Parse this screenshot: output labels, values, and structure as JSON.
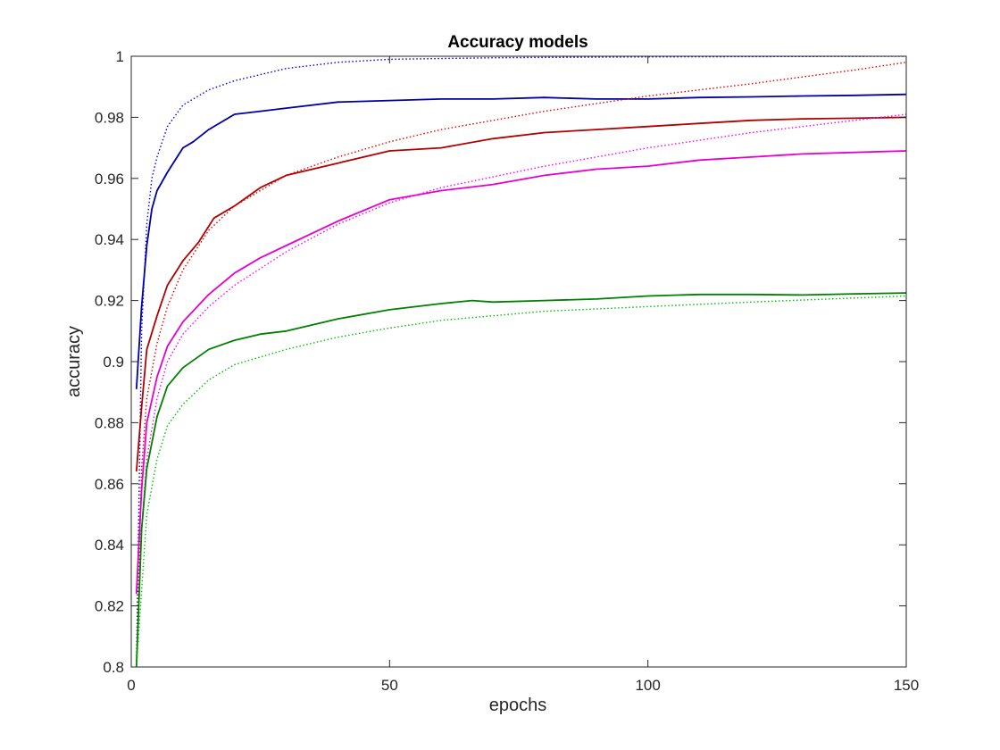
{
  "chart_data": {
    "type": "line",
    "title": "Accuracy models",
    "xlabel": "epochs",
    "ylabel": "accuracy",
    "xlim": [
      0,
      150
    ],
    "ylim": [
      0.8,
      1
    ],
    "xticks": [
      0,
      50,
      100,
      150
    ],
    "xtick_labels": [
      "0",
      "50",
      "100",
      "150"
    ],
    "yticks": [
      0.8,
      0.82,
      0.84,
      0.86,
      0.88,
      0.9,
      0.92,
      0.94,
      0.96,
      0.98,
      1
    ],
    "ytick_labels": [
      "0.8",
      "0.82",
      "0.84",
      "0.86",
      "0.88",
      "0.9",
      "0.92",
      "0.94",
      "0.96",
      "0.98",
      "1"
    ],
    "grid": false,
    "box": true,
    "series": [
      {
        "color": "#0000a0",
        "style": "solid",
        "points": [
          [
            1,
            0.891
          ],
          [
            2,
            0.918
          ],
          [
            3,
            0.938
          ],
          [
            4,
            0.95
          ],
          [
            5,
            0.956
          ],
          [
            7,
            0.962
          ],
          [
            10,
            0.97
          ],
          [
            12,
            0.972
          ],
          [
            15,
            0.976
          ],
          [
            20,
            0.981
          ],
          [
            25,
            0.982
          ],
          [
            30,
            0.983
          ],
          [
            40,
            0.985
          ],
          [
            50,
            0.9855
          ],
          [
            60,
            0.986
          ],
          [
            70,
            0.986
          ],
          [
            80,
            0.9865
          ],
          [
            90,
            0.986
          ],
          [
            100,
            0.986
          ],
          [
            110,
            0.9865
          ],
          [
            120,
            0.9867
          ],
          [
            130,
            0.987
          ],
          [
            140,
            0.9872
          ],
          [
            150,
            0.9875
          ]
        ]
      },
      {
        "color": "#0000e6",
        "style": "dotted",
        "points": [
          [
            1,
            0.8
          ],
          [
            2,
            0.91
          ],
          [
            3,
            0.945
          ],
          [
            4,
            0.96
          ],
          [
            5,
            0.967
          ],
          [
            7,
            0.977
          ],
          [
            10,
            0.984
          ],
          [
            15,
            0.989
          ],
          [
            20,
            0.992
          ],
          [
            30,
            0.996
          ],
          [
            40,
            0.998
          ],
          [
            50,
            0.999
          ],
          [
            70,
            0.9995
          ],
          [
            100,
            0.9998
          ],
          [
            150,
            1.0
          ]
        ]
      },
      {
        "color": "#b00000",
        "style": "solid",
        "points": [
          [
            1,
            0.864
          ],
          [
            2,
            0.885
          ],
          [
            3,
            0.904
          ],
          [
            5,
            0.915
          ],
          [
            7,
            0.925
          ],
          [
            10,
            0.933
          ],
          [
            13,
            0.939
          ],
          [
            16,
            0.947
          ],
          [
            20,
            0.951
          ],
          [
            25,
            0.957
          ],
          [
            30,
            0.961
          ],
          [
            40,
            0.965
          ],
          [
            50,
            0.969
          ],
          [
            60,
            0.97
          ],
          [
            70,
            0.973
          ],
          [
            80,
            0.975
          ],
          [
            90,
            0.976
          ],
          [
            100,
            0.977
          ],
          [
            110,
            0.978
          ],
          [
            120,
            0.979
          ],
          [
            130,
            0.9795
          ],
          [
            140,
            0.9797
          ],
          [
            150,
            0.98
          ]
        ]
      },
      {
        "color": "#e60000",
        "style": "dotted",
        "points": [
          [
            1,
            0.8
          ],
          [
            2,
            0.865
          ],
          [
            3,
            0.888
          ],
          [
            5,
            0.906
          ],
          [
            7,
            0.918
          ],
          [
            10,
            0.93
          ],
          [
            15,
            0.943
          ],
          [
            20,
            0.951
          ],
          [
            30,
            0.961
          ],
          [
            40,
            0.967
          ],
          [
            50,
            0.972
          ],
          [
            60,
            0.976
          ],
          [
            80,
            0.982
          ],
          [
            100,
            0.987
          ],
          [
            120,
            0.991
          ],
          [
            140,
            0.9955
          ],
          [
            150,
            0.998
          ]
        ]
      },
      {
        "color": "#e600d0",
        "style": "solid",
        "points": [
          [
            1,
            0.824
          ],
          [
            2,
            0.858
          ],
          [
            3,
            0.88
          ],
          [
            5,
            0.895
          ],
          [
            7,
            0.905
          ],
          [
            10,
            0.913
          ],
          [
            15,
            0.922
          ],
          [
            20,
            0.929
          ],
          [
            25,
            0.934
          ],
          [
            30,
            0.938
          ],
          [
            40,
            0.946
          ],
          [
            50,
            0.953
          ],
          [
            60,
            0.956
          ],
          [
            70,
            0.958
          ],
          [
            80,
            0.961
          ],
          [
            90,
            0.963
          ],
          [
            100,
            0.964
          ],
          [
            110,
            0.966
          ],
          [
            120,
            0.967
          ],
          [
            130,
            0.968
          ],
          [
            140,
            0.9685
          ],
          [
            150,
            0.969
          ]
        ]
      },
      {
        "color": "#ff00ff",
        "style": "dotted",
        "points": [
          [
            1,
            0.8
          ],
          [
            2,
            0.845
          ],
          [
            3,
            0.868
          ],
          [
            5,
            0.888
          ],
          [
            7,
            0.9
          ],
          [
            10,
            0.909
          ],
          [
            15,
            0.918
          ],
          [
            20,
            0.925
          ],
          [
            30,
            0.936
          ],
          [
            40,
            0.945
          ],
          [
            50,
            0.952
          ],
          [
            60,
            0.957
          ],
          [
            80,
            0.964
          ],
          [
            100,
            0.97
          ],
          [
            120,
            0.975
          ],
          [
            140,
            0.979
          ],
          [
            150,
            0.981
          ]
        ]
      },
      {
        "color": "#008000",
        "style": "solid",
        "points": [
          [
            1,
            0.8
          ],
          [
            2,
            0.845
          ],
          [
            3,
            0.865
          ],
          [
            5,
            0.882
          ],
          [
            7,
            0.892
          ],
          [
            10,
            0.898
          ],
          [
            15,
            0.904
          ],
          [
            20,
            0.907
          ],
          [
            25,
            0.909
          ],
          [
            30,
            0.91
          ],
          [
            40,
            0.914
          ],
          [
            50,
            0.917
          ],
          [
            60,
            0.919
          ],
          [
            66,
            0.92
          ],
          [
            70,
            0.9195
          ],
          [
            80,
            0.92
          ],
          [
            90,
            0.9205
          ],
          [
            100,
            0.9215
          ],
          [
            110,
            0.922
          ],
          [
            120,
            0.922
          ],
          [
            130,
            0.9218
          ],
          [
            140,
            0.9222
          ],
          [
            150,
            0.9225
          ]
        ]
      },
      {
        "color": "#00c000",
        "style": "dotted",
        "points": [
          [
            1,
            0.8
          ],
          [
            2,
            0.825
          ],
          [
            3,
            0.85
          ],
          [
            5,
            0.868
          ],
          [
            7,
            0.879
          ],
          [
            10,
            0.886
          ],
          [
            15,
            0.894
          ],
          [
            20,
            0.899
          ],
          [
            30,
            0.904
          ],
          [
            40,
            0.908
          ],
          [
            50,
            0.911
          ],
          [
            60,
            0.9135
          ],
          [
            80,
            0.9165
          ],
          [
            100,
            0.918
          ],
          [
            120,
            0.9195
          ],
          [
            150,
            0.9215
          ]
        ]
      }
    ]
  }
}
